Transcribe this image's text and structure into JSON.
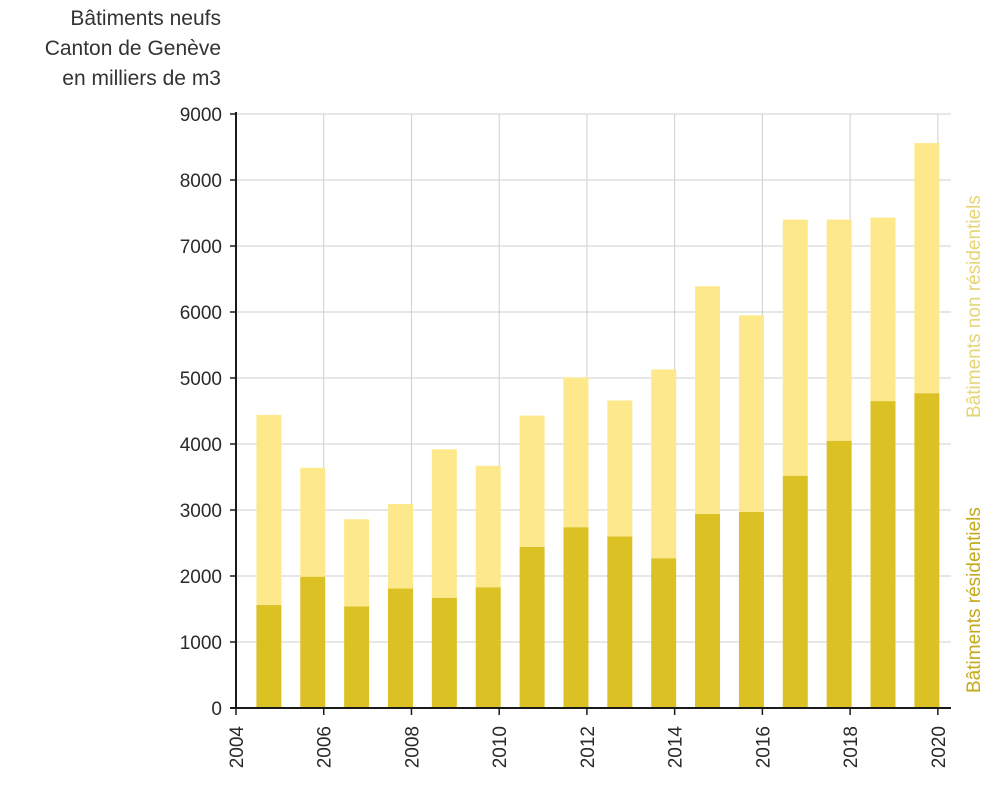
{
  "chart_data": {
    "type": "bar",
    "stacked": true,
    "title_lines": [
      "Bâtiments neufs",
      "Canton de Genève",
      "en milliers de m3"
    ],
    "x": [
      2004.75,
      2005.75,
      2006.75,
      2007.75,
      2008.75,
      2009.75,
      2010.75,
      2011.75,
      2012.75,
      2013.75,
      2014.75,
      2015.75,
      2016.75,
      2017.75,
      2018.75,
      2019.75
    ],
    "xlim": [
      2004,
      2020.3
    ],
    "ylim": [
      0,
      9000
    ],
    "x_ticks": [
      "2004",
      "2006",
      "2008",
      "2010",
      "2012",
      "2014",
      "2016",
      "2018",
      "2020"
    ],
    "y_ticks": [
      "0",
      "1000",
      "2000",
      "3000",
      "4000",
      "5000",
      "6000",
      "7000",
      "8000",
      "9000"
    ],
    "grid": true,
    "series": [
      {
        "name": "Bâtiments résidentiels",
        "color": "#dcc125",
        "values": [
          1560,
          1990,
          1540,
          1810,
          1670,
          1830,
          2440,
          2740,
          2600,
          2270,
          2940,
          2970,
          3520,
          4050,
          4650,
          4770
        ]
      },
      {
        "name": "Bâtiments non résidentiels",
        "color": "#fde98c",
        "values": [
          2880,
          1650,
          1320,
          1280,
          2250,
          1840,
          1990,
          2270,
          2060,
          2860,
          3450,
          2980,
          3880,
          3350,
          2780,
          3790
        ]
      }
    ]
  }
}
